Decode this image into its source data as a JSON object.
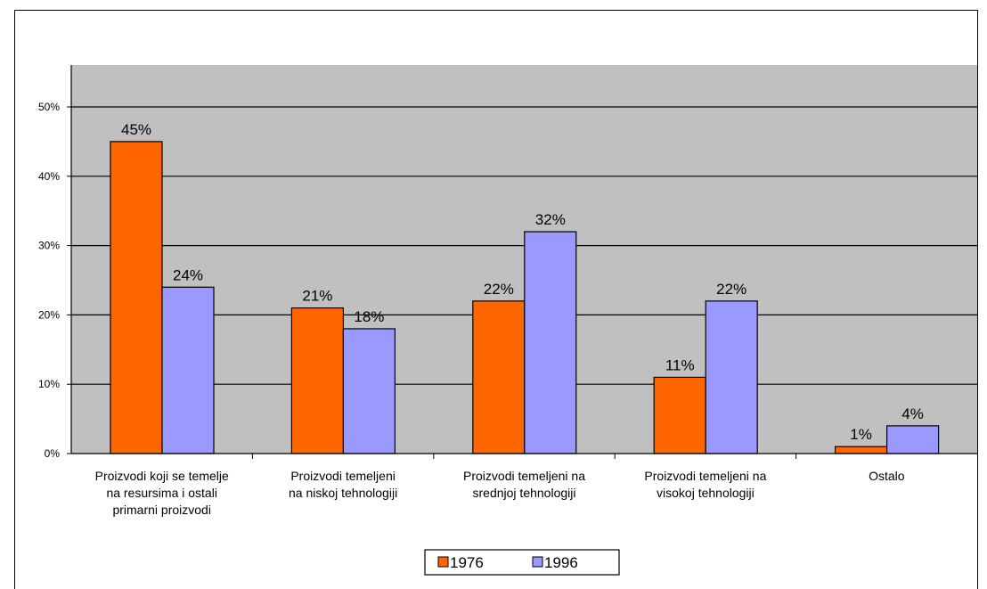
{
  "chart_data": {
    "type": "bar",
    "categories": [
      [
        "Proizvodi koji se temelje",
        "na resursima i ostali",
        "primarni proizvodi"
      ],
      [
        "Proizvodi temeljeni",
        "na niskoj tehnologiji"
      ],
      [
        "Proizvodi temeljeni na",
        "srednjoj tehnologiji"
      ],
      [
        "Proizvodi temeljeni na",
        "visokoj tehnologiji"
      ],
      [
        "Ostalo"
      ]
    ],
    "series": [
      {
        "name": "1976",
        "values": [
          45,
          21,
          22,
          11,
          1
        ],
        "labels": [
          "45%",
          "21%",
          "22%",
          "11%",
          "1%"
        ],
        "color": "#ff6600"
      },
      {
        "name": "1996",
        "values": [
          24,
          18,
          32,
          22,
          4
        ],
        "labels": [
          "24%",
          "18%",
          "32%",
          "22%",
          "4%"
        ],
        "color": "#9999ff"
      }
    ],
    "yticks": [
      "0%",
      "10%",
      "20%",
      "30%",
      "40%",
      "50%"
    ],
    "ylim": [
      0,
      50
    ],
    "grid": true,
    "plot_background": "#c0c0c0",
    "legend_position": "bottom"
  }
}
